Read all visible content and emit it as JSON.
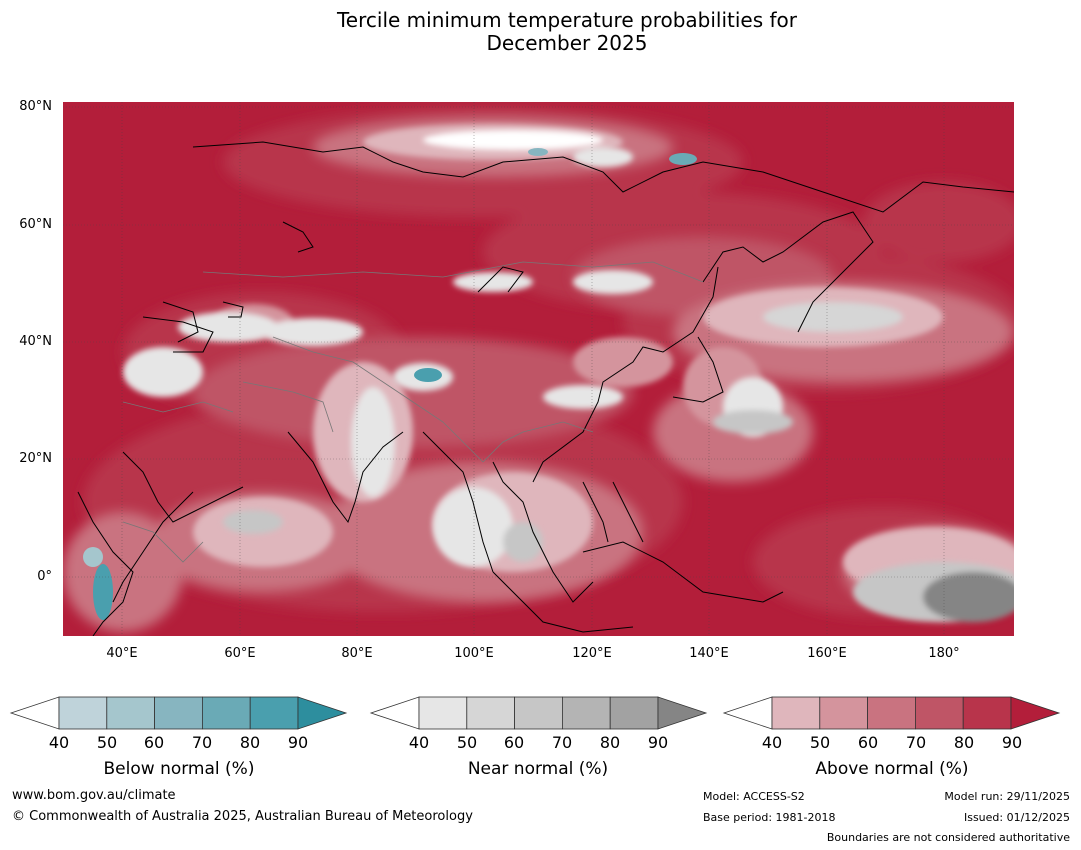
{
  "title": {
    "line1": "Tercile minimum temperature probabilities for",
    "line2": "December 2025"
  },
  "axes": {
    "latitude_labels": [
      "80°N",
      "60°N",
      "40°N",
      "20°N",
      "0°"
    ],
    "longitude_labels": [
      "40°E",
      "60°E",
      "80°E",
      "100°E",
      "120°E",
      "140°E",
      "160°E",
      "180°"
    ]
  },
  "colorbars": [
    {
      "label": "Below normal (%)",
      "ticks": [
        "40",
        "50",
        "60",
        "70",
        "80",
        "90"
      ],
      "colors": [
        "#ffffff",
        "#bfd3da",
        "#a5c6cd",
        "#87b5c0",
        "#6aaab6",
        "#4a9fae",
        "#2d8e9e"
      ]
    },
    {
      "label": "Near normal (%)",
      "ticks": [
        "40",
        "50",
        "60",
        "70",
        "80",
        "90"
      ],
      "colors": [
        "#ffffff",
        "#e6e6e6",
        "#d6d6d6",
        "#c6c6c6",
        "#b4b4b4",
        "#a2a2a2",
        "#858585"
      ]
    },
    {
      "label": "Above normal (%)",
      "ticks": [
        "40",
        "50",
        "60",
        "70",
        "80",
        "90"
      ],
      "colors": [
        "#ffffff",
        "#dfb6bc",
        "#d4949d",
        "#c97380",
        "#bf5566",
        "#b8344b",
        "#b31e3a"
      ]
    }
  ],
  "footer": {
    "website": "www.bom.gov.au/climate",
    "copyright": "© Commonwealth of Australia 2025, Australian Bureau of Meteorology",
    "model": "Model: ACCESS-S2",
    "base_period": "Base period: 1981-2018",
    "model_run": "Model run: 29/11/2025",
    "issued": "Issued: 01/12/2025",
    "disclaimer": "Boundaries are not considered authoritative"
  }
}
